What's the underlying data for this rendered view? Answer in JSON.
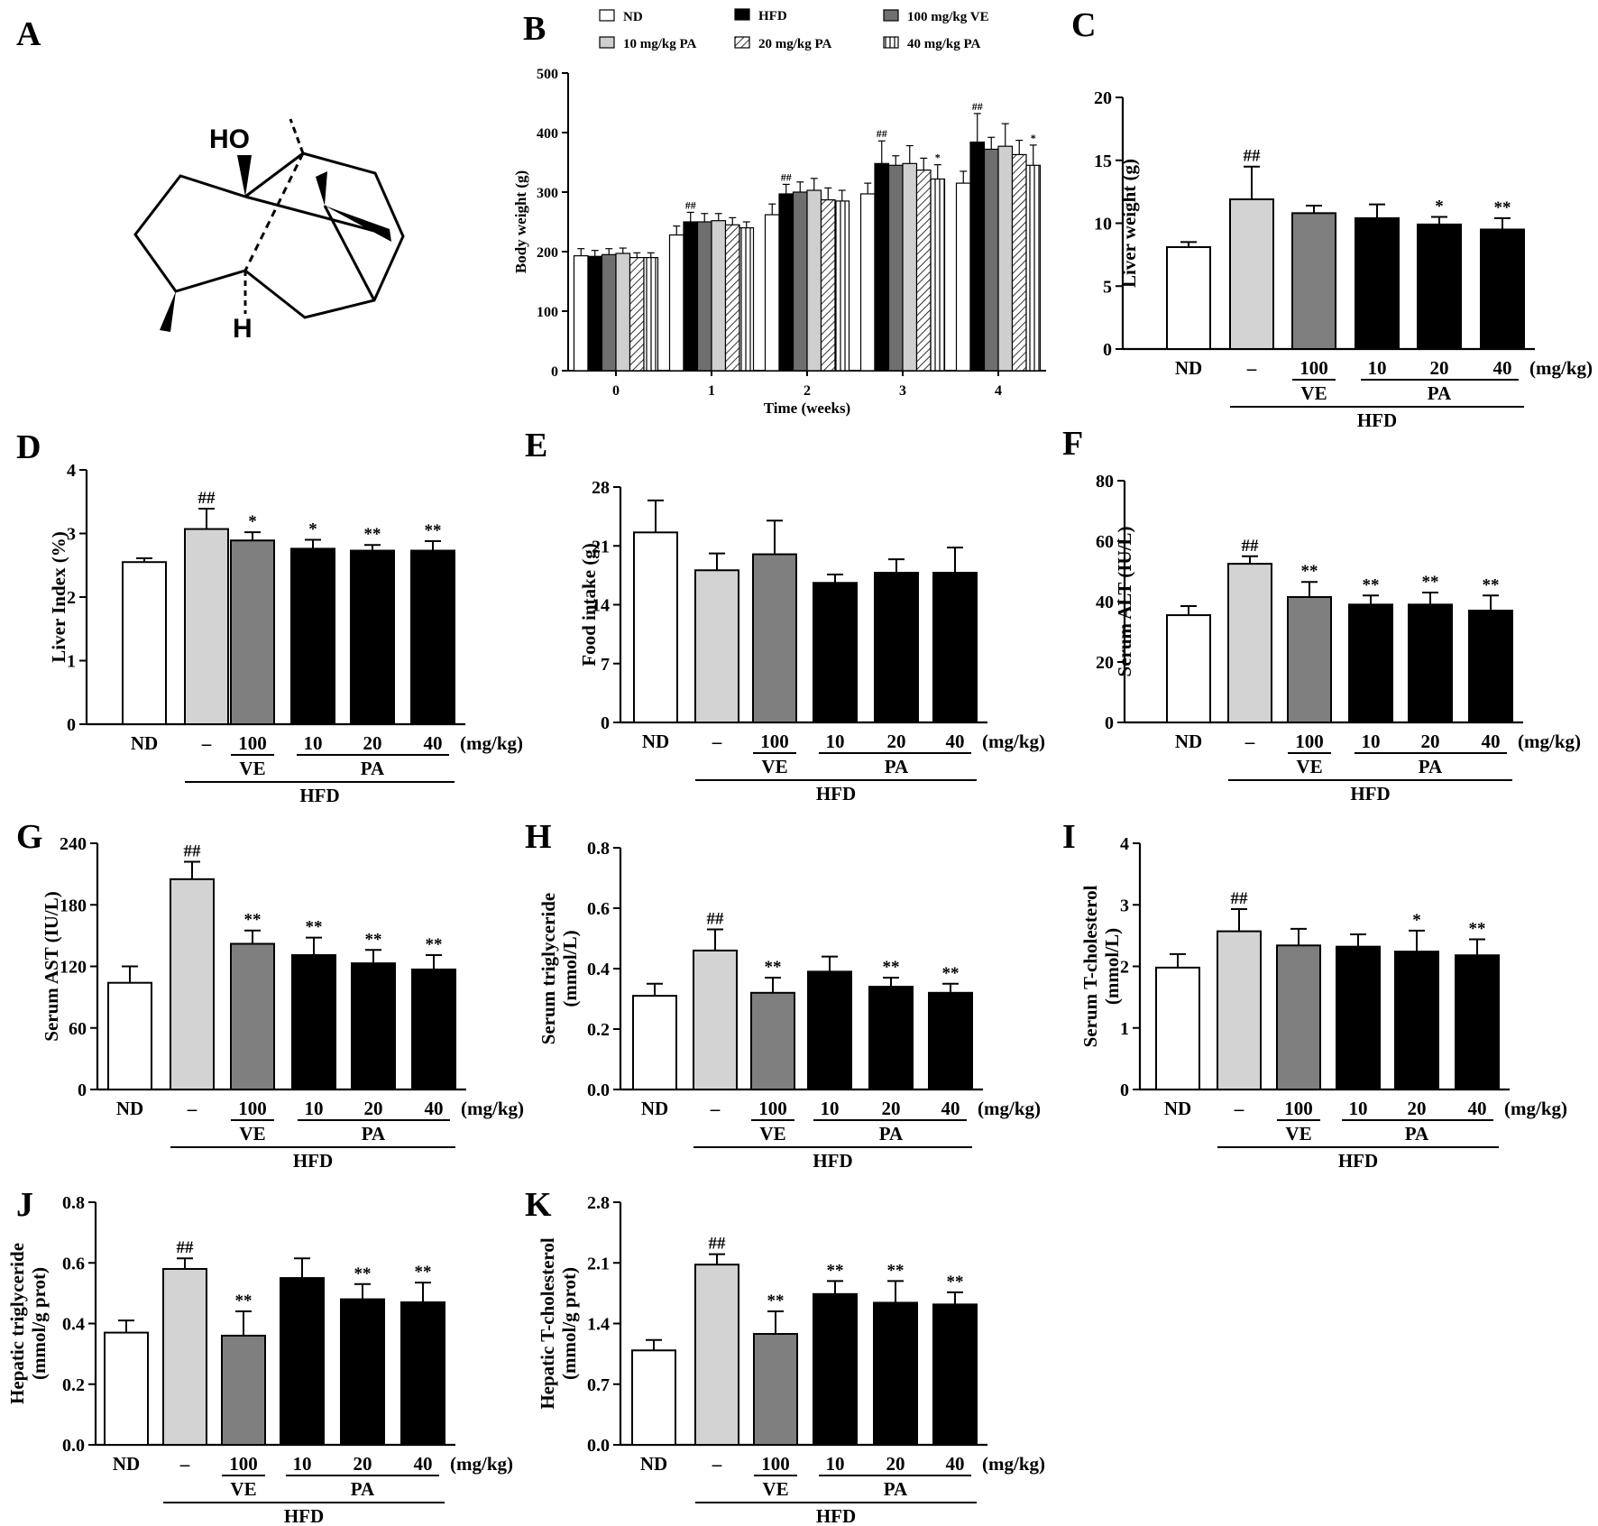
{
  "colors": {
    "ND": "#ffffff",
    "HFD": "#d3d3d3",
    "VE": "#7f7f7f",
    "PA": "#000000",
    "stroke": "#000000"
  },
  "panel_a": {
    "letter": "A",
    "label_ho": "HO",
    "label_h": "H"
  },
  "group_labels": {
    "nd": "ND",
    "dash": "–",
    "ve_dose": "100",
    "pa_doses": [
      "10",
      "20",
      "40"
    ],
    "unit": "(mg/kg)",
    "ve": "VE",
    "pa": "PA",
    "hfd": "HFD"
  },
  "panel_b": {
    "letter": "B",
    "legend": [
      "ND",
      "HFD",
      "100 mg/kg VE",
      "10 mg/kg PA",
      "20 mg/kg PA",
      "40 mg/kg PA"
    ],
    "ylabel": "Body weight (g)",
    "xlabel": "Time (weeks)"
  },
  "chart_data": [
    {
      "panel": "B",
      "type": "bar",
      "xlabel": "Time (weeks)",
      "ylabel": "Body weight (g)",
      "ylim": [
        0,
        500
      ],
      "yticks": [
        0,
        100,
        200,
        300,
        400,
        500
      ],
      "categories": [
        "0",
        "1",
        "2",
        "3",
        "4"
      ],
      "series": [
        {
          "name": "ND",
          "fill": "white",
          "values": [
            193,
            228,
            262,
            297,
            315
          ],
          "err": [
            12,
            15,
            18,
            18,
            20
          ]
        },
        {
          "name": "HFD",
          "fill": "black",
          "values": [
            192,
            250,
            297,
            348,
            384
          ],
          "err": [
            10,
            16,
            16,
            38,
            48
          ]
        },
        {
          "name": "100 mg/kg VE",
          "fill": "darkgray",
          "values": [
            195,
            250,
            300,
            345,
            372
          ],
          "err": [
            10,
            14,
            17,
            16,
            20
          ]
        },
        {
          "name": "10 mg/kg PA",
          "fill": "lightgray",
          "values": [
            197,
            252,
            303,
            348,
            377
          ],
          "err": [
            9,
            12,
            20,
            30,
            38
          ]
        },
        {
          "name": "20 mg/kg PA",
          "fill": "hatch",
          "values": [
            190,
            245,
            287,
            337,
            363
          ],
          "err": [
            8,
            12,
            20,
            20,
            24
          ]
        },
        {
          "name": "40 mg/kg PA",
          "fill": "vlines",
          "values": [
            190,
            240,
            285,
            322,
            345
          ],
          "err": [
            8,
            10,
            18,
            24,
            34
          ]
        }
      ],
      "annotations": [
        {
          "category": "1",
          "series": "HFD",
          "text": "##"
        },
        {
          "category": "2",
          "series": "HFD",
          "text": "##"
        },
        {
          "category": "3",
          "series": "HFD",
          "text": "##"
        },
        {
          "category": "4",
          "series": "HFD",
          "text": "##"
        },
        {
          "category": "3",
          "series": "40 mg/kg PA",
          "text": "*"
        },
        {
          "category": "4",
          "series": "40 mg/kg PA",
          "text": "*"
        }
      ]
    },
    {
      "panel": "C",
      "type": "bar",
      "ylabel": "Liver weight (g)",
      "ylim": [
        0,
        20
      ],
      "yticks": [
        0,
        5,
        10,
        15,
        20
      ],
      "values": [
        8.1,
        11.9,
        10.8,
        10.4,
        9.9,
        9.5
      ],
      "err": [
        0.4,
        2.6,
        0.6,
        1.1,
        0.6,
        0.9
      ],
      "marks": [
        "",
        "##",
        "",
        "",
        "*",
        "**"
      ]
    },
    {
      "panel": "D",
      "type": "bar",
      "ylabel": "Liver Index (%)",
      "ylim": [
        0,
        4
      ],
      "yticks": [
        0,
        1,
        2,
        3,
        4
      ],
      "values": [
        2.55,
        3.07,
        2.89,
        2.76,
        2.73,
        2.73
      ],
      "err": [
        0.06,
        0.32,
        0.13,
        0.14,
        0.09,
        0.15
      ],
      "marks": [
        "",
        "##",
        "*",
        "*",
        "**",
        "**"
      ]
    },
    {
      "panel": "E",
      "type": "bar",
      "ylabel": "Food intake (g)",
      "ylim": [
        0,
        28
      ],
      "yticks": [
        0,
        7,
        14,
        21,
        28
      ],
      "values": [
        22.6,
        18.1,
        20.0,
        16.6,
        17.8,
        17.8
      ],
      "err": [
        3.8,
        2.0,
        4.0,
        1.0,
        1.6,
        3.0
      ],
      "marks": [
        "",
        "",
        "",
        "",
        "",
        ""
      ]
    },
    {
      "panel": "F",
      "type": "bar",
      "ylabel": "Serum ALT (IU/L)",
      "ylim": [
        0,
        80
      ],
      "yticks": [
        0,
        20,
        40,
        60,
        80
      ],
      "values": [
        35.5,
        52.5,
        41.5,
        39.0,
        39.0,
        37.0
      ],
      "err": [
        3.0,
        2.5,
        5.0,
        3.0,
        4.0,
        5.0
      ],
      "marks": [
        "",
        "##",
        "**",
        "**",
        "**",
        "**"
      ]
    },
    {
      "panel": "G",
      "type": "bar",
      "ylabel": "Serum AST (IU/L)",
      "ylim": [
        0,
        240
      ],
      "yticks": [
        0,
        60,
        120,
        180,
        240
      ],
      "values": [
        104,
        205,
        142,
        131,
        123,
        117
      ],
      "err": [
        16,
        17,
        13,
        17,
        13,
        14
      ],
      "marks": [
        "",
        "##",
        "**",
        "**",
        "**",
        "**"
      ]
    },
    {
      "panel": "H",
      "type": "bar",
      "ylabel": "Serum triglyceride (mmol/L)",
      "ylim": [
        0,
        0.8
      ],
      "yticks": [
        0.0,
        0.2,
        0.4,
        0.6,
        0.8
      ],
      "values": [
        0.31,
        0.46,
        0.32,
        0.39,
        0.34,
        0.32
      ],
      "err": [
        0.04,
        0.07,
        0.05,
        0.05,
        0.03,
        0.03
      ],
      "marks": [
        "",
        "##",
        "**",
        "",
        "**",
        "**"
      ]
    },
    {
      "panel": "I",
      "type": "bar",
      "ylabel": "Serum T-cholesterol (mmol/L)",
      "ylim": [
        0,
        4
      ],
      "yticks": [
        0,
        1,
        2,
        3,
        4
      ],
      "values": [
        1.98,
        2.57,
        2.34,
        2.32,
        2.24,
        2.18
      ],
      "err": [
        0.22,
        0.36,
        0.27,
        0.2,
        0.34,
        0.26
      ],
      "marks": [
        "",
        "##",
        "",
        "",
        "*",
        "**"
      ]
    },
    {
      "panel": "J",
      "type": "bar",
      "ylabel": "Hepatic triglyceride (mmol/g prot)",
      "ylim": [
        0,
        0.8
      ],
      "yticks": [
        0.0,
        0.2,
        0.4,
        0.6,
        0.8
      ],
      "values": [
        0.37,
        0.58,
        0.36,
        0.55,
        0.48,
        0.47
      ],
      "err": [
        0.04,
        0.035,
        0.08,
        0.065,
        0.05,
        0.065
      ],
      "marks": [
        "",
        "##",
        "**",
        "",
        "**",
        "**"
      ]
    },
    {
      "panel": "K",
      "type": "bar",
      "ylabel": "Hepatic T-cholesterol (mmol/g prot)",
      "ylim": [
        0,
        2.8
      ],
      "yticks": [
        0.0,
        0.7,
        1.4,
        2.1,
        2.8
      ],
      "values": [
        1.09,
        2.08,
        1.28,
        1.74,
        1.64,
        1.62
      ],
      "err": [
        0.12,
        0.12,
        0.26,
        0.15,
        0.25,
        0.14
      ],
      "marks": [
        "",
        "##",
        "**",
        "**",
        "**",
        "**"
      ]
    }
  ]
}
